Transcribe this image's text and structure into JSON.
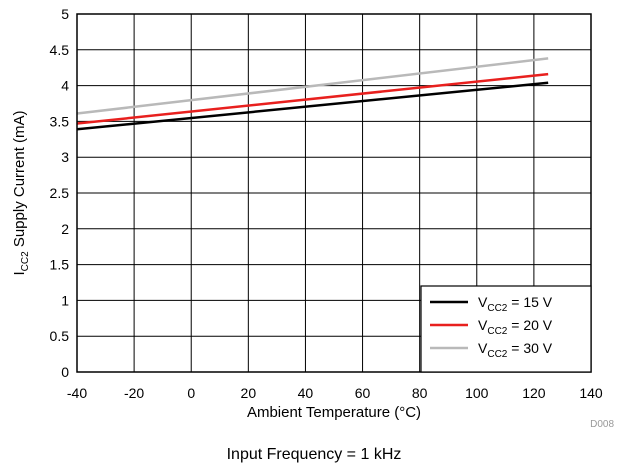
{
  "chart_data": {
    "type": "line",
    "xlabel": "Ambient Temperature (°C)",
    "ylabel": {
      "base": "I",
      "sub": "CC2",
      "rest": " Supply Current (mA)"
    },
    "xlim": [
      -40,
      140
    ],
    "ylim": [
      0,
      5
    ],
    "xticks": [
      -40,
      -20,
      0,
      20,
      40,
      60,
      80,
      100,
      120,
      140
    ],
    "yticks": [
      0,
      0.5,
      1,
      1.5,
      2,
      2.5,
      3,
      3.5,
      4,
      4.5,
      5
    ],
    "ytick_labels": [
      "0",
      "0.5",
      "1",
      "1.5",
      "2",
      "2.5",
      "3",
      "3.5",
      "4",
      "4.5",
      "5"
    ],
    "grid": true,
    "legend_position": "bottom-right",
    "series": [
      {
        "label_base": "V",
        "label_sub": "CC2",
        "label_rest": " = 15 V",
        "color": "#000000",
        "x": [
          -40,
          125
        ],
        "y": [
          3.39,
          4.04
        ]
      },
      {
        "label_base": "V",
        "label_sub": "CC2",
        "label_rest": " = 20 V",
        "color": "#e8201e",
        "x": [
          -40,
          125
        ],
        "y": [
          3.47,
          4.16
        ]
      },
      {
        "label_base": "V",
        "label_sub": "CC2",
        "label_rest": " = 30 V",
        "color": "#b9b9b9",
        "x": [
          -40,
          125
        ],
        "y": [
          3.61,
          4.38
        ]
      }
    ],
    "figure_code": "D008",
    "caption": "Input Frequency = 1 kHz"
  }
}
